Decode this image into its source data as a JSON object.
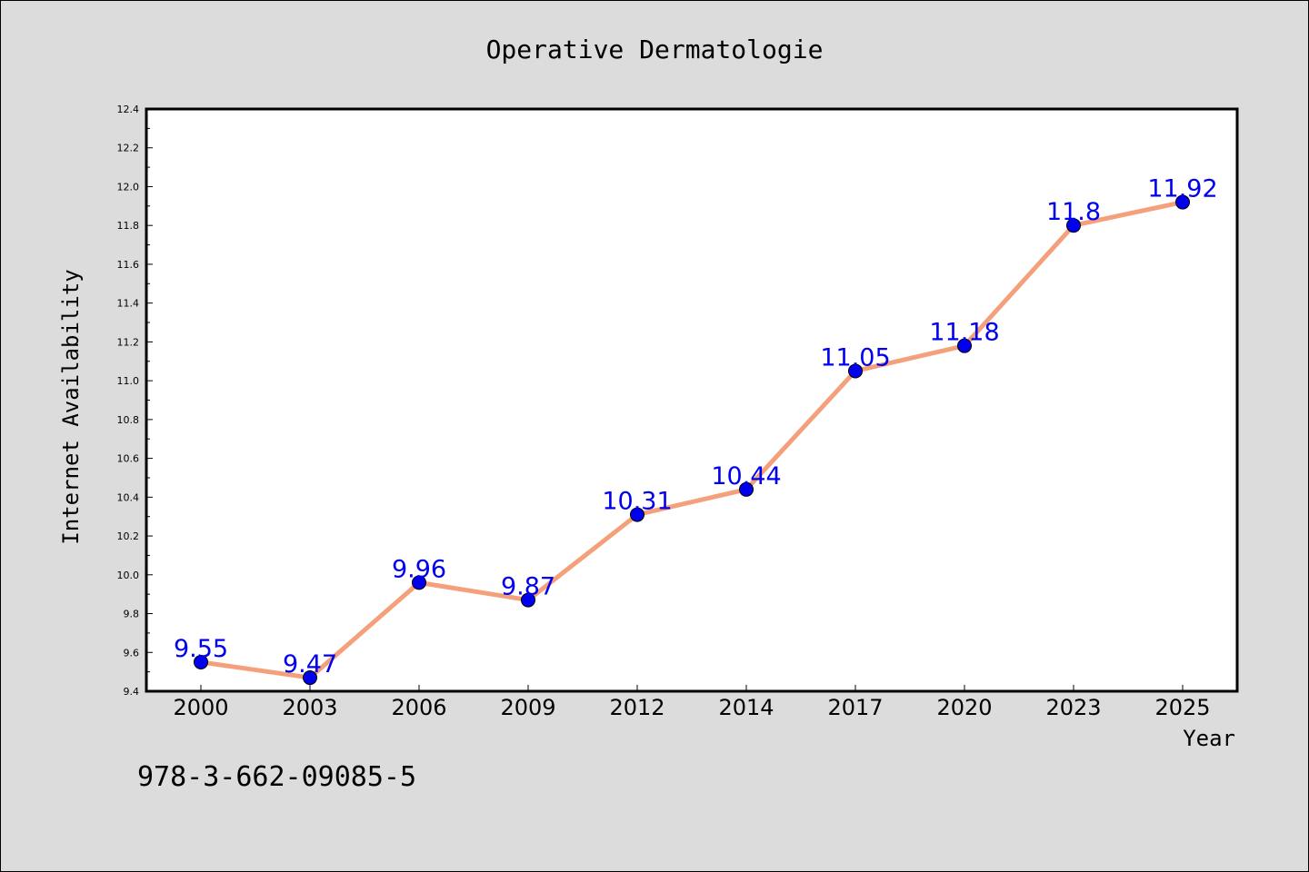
{
  "chart_data": {
    "type": "line",
    "title": "Operative Dermatologie",
    "xlabel": "Year",
    "ylabel": "Internet Availability",
    "categories": [
      "2000",
      "2003",
      "2006",
      "2009",
      "2012",
      "2014",
      "2017",
      "2020",
      "2023",
      "2025"
    ],
    "series": [
      {
        "values": [
          9.55,
          9.47,
          9.96,
          9.87,
          10.31,
          10.44,
          11.05,
          11.18,
          11.8,
          11.92
        ],
        "data_labels": [
          "9.55",
          "9.47",
          "9.96",
          "9.87",
          "10.31",
          "10.44",
          "11.05",
          "11.18",
          "11.8",
          "11.92"
        ]
      }
    ],
    "ylim": [
      9.4,
      12.4
    ],
    "yticks": [
      "9.4",
      "9.6",
      "9.8",
      "10.0",
      "10.2",
      "10.4",
      "10.6",
      "10.8",
      "11.0",
      "11.2",
      "11.4",
      "11.6",
      "11.8",
      "12.0",
      "12.2",
      "12.4"
    ],
    "grid": false,
    "legend": "none",
    "annotation": "978-3-662-09085-5",
    "colors": {
      "line": "#f4a07a",
      "marker": "#0000ee",
      "label": "#0000ee",
      "background": "#dcdcdc",
      "plot_background": "#ffffff"
    }
  }
}
